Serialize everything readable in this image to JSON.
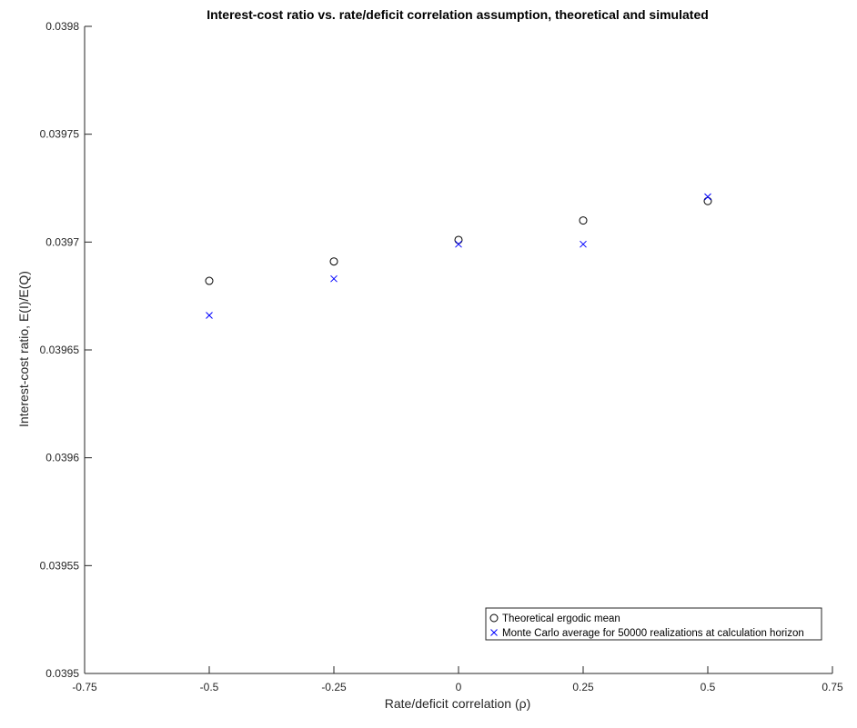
{
  "chart_data": {
    "type": "scatter",
    "title": "Interest-cost ratio vs. rate/deficit correlation assumption, theoretical and simulated",
    "xlabel": "Rate/deficit correlation (ρ)",
    "ylabel": "Interest-cost ratio, E(I)/E(Q)",
    "xlim": [
      -0.75,
      0.75
    ],
    "ylim": [
      0.0395,
      0.0398
    ],
    "x_ticks": [
      -0.75,
      -0.5,
      -0.25,
      0,
      0.25,
      0.5,
      0.75
    ],
    "x_tick_labels": [
      "-0.75",
      "-0.5",
      "-0.25",
      "0",
      "0.25",
      "0.5",
      "0.75"
    ],
    "y_ticks": [
      0.0395,
      0.03955,
      0.0396,
      0.03965,
      0.0397,
      0.03975,
      0.0398
    ],
    "y_tick_labels": [
      "0.0395",
      "0.03955",
      "0.0396",
      "0.03965",
      "0.0397",
      "0.03975",
      "0.0398"
    ],
    "grid": false,
    "legend_position": "bottom-right",
    "series": [
      {
        "name": "Theoretical ergodic mean",
        "marker": "circle",
        "color": "#000000",
        "x": [
          -0.5,
          -0.25,
          0,
          0.25,
          0.5
        ],
        "y": [
          0.039682,
          0.039691,
          0.039701,
          0.03971,
          0.039719
        ]
      },
      {
        "name": "Monte Carlo average for 50000 realizations at calculation horizon",
        "marker": "x",
        "color": "#0000ff",
        "x": [
          -0.5,
          -0.25,
          0,
          0.25,
          0.5
        ],
        "y": [
          0.039666,
          0.039683,
          0.039699,
          0.039699,
          0.039721
        ]
      }
    ]
  }
}
